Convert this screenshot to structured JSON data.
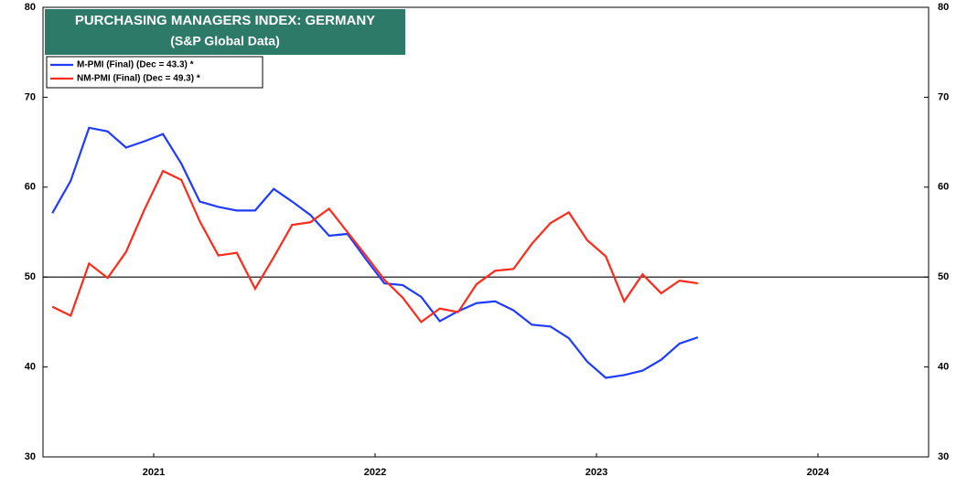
{
  "chart_data": {
    "type": "line",
    "title": "PURCHASING MANAGERS INDEX: GERMANY",
    "subtitle": "(S&P Global Data)",
    "x": [
      2021.042,
      2021.125,
      2021.208,
      2021.292,
      2021.375,
      2021.458,
      2021.542,
      2021.625,
      2021.708,
      2021.792,
      2021.875,
      2021.958,
      2022.042,
      2022.125,
      2022.208,
      2022.292,
      2022.375,
      2022.458,
      2022.542,
      2022.625,
      2022.708,
      2022.792,
      2022.875,
      2022.958,
      2023.042,
      2023.125,
      2023.208,
      2023.292,
      2023.375,
      2023.458,
      2023.542,
      2023.625,
      2023.708,
      2023.792,
      2023.875,
      2023.958
    ],
    "series": [
      {
        "name": "M-PMI (Final) (Dec = 43.3) *",
        "color": "#1f3bff",
        "values": [
          57.1,
          60.7,
          66.6,
          66.2,
          64.4,
          65.1,
          65.9,
          62.6,
          58.4,
          57.8,
          57.4,
          57.4,
          59.8,
          58.4,
          56.9,
          54.6,
          54.8,
          52.0,
          49.3,
          49.1,
          47.8,
          45.1,
          46.2,
          47.1,
          47.3,
          46.3,
          44.7,
          44.5,
          43.2,
          40.6,
          38.8,
          39.1,
          39.6,
          40.8,
          42.6,
          43.3
        ]
      },
      {
        "name": "NM-PMI (Final) (Dec = 49.3) *",
        "color": "#ff2a1a",
        "values": [
          46.7,
          45.7,
          51.5,
          49.9,
          52.8,
          57.5,
          61.8,
          60.8,
          56.2,
          52.4,
          52.7,
          48.7,
          52.2,
          55.8,
          56.1,
          57.6,
          55.0,
          52.4,
          49.7,
          47.7,
          45.0,
          46.5,
          46.1,
          49.2,
          50.7,
          50.9,
          53.7,
          56.0,
          57.2,
          54.1,
          52.3,
          47.3,
          50.3,
          48.2,
          49.6,
          49.3
        ]
      }
    ],
    "xlim": [
      2021,
      2025
    ],
    "xticks": [
      {
        "value": 2021.5,
        "label": "2021"
      },
      {
        "value": 2022.5,
        "label": "2022"
      },
      {
        "value": 2023.5,
        "label": "2023"
      },
      {
        "value": 2024.5,
        "label": "2024"
      }
    ],
    "ylim": [
      30,
      80
    ],
    "yticks": [
      30,
      40,
      50,
      60,
      70,
      80
    ],
    "y2lim": [
      30,
      80
    ],
    "y2ticks": [
      30,
      40,
      50,
      60,
      70,
      80
    ],
    "reference_line": 50,
    "legend": "upper left"
  }
}
